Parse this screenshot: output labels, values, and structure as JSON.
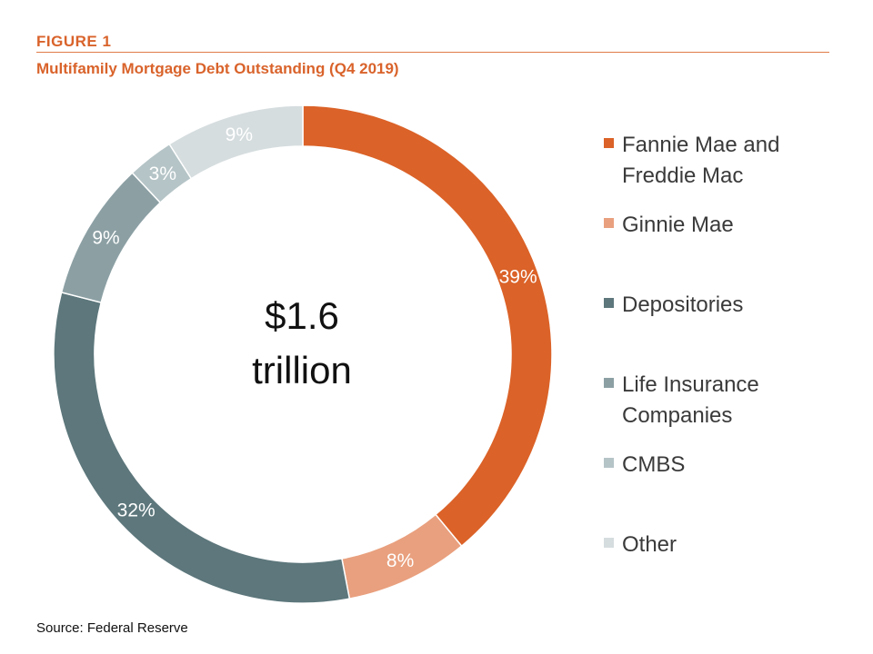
{
  "header": {
    "figure_label": "FIGURE 1",
    "title": "Multifamily Mortgage Debt Outstanding (Q4 2019)"
  },
  "footer": {
    "source": "Source: Federal Reserve"
  },
  "chart_data": {
    "type": "pie",
    "donut": true,
    "title": "Multifamily Mortgage Debt Outstanding (Q4 2019)",
    "center_label_line1": "$1.6",
    "center_label_line2": "trillion",
    "legend_placement": "right",
    "categories": [
      "Fannie Mae and Freddie Mac",
      "Ginnie Mae",
      "Depositories",
      "Life Insurance Companies",
      "CMBS",
      "Other"
    ],
    "values": [
      39,
      8,
      32,
      9,
      3,
      9
    ],
    "labels": [
      "39%",
      "8%",
      "32%",
      "9%",
      "3%",
      "9%"
    ],
    "colors": [
      "#db6228",
      "#e9a07e",
      "#5d777c",
      "#8ca0a4",
      "#b5c4c7",
      "#d6dddf"
    ]
  }
}
